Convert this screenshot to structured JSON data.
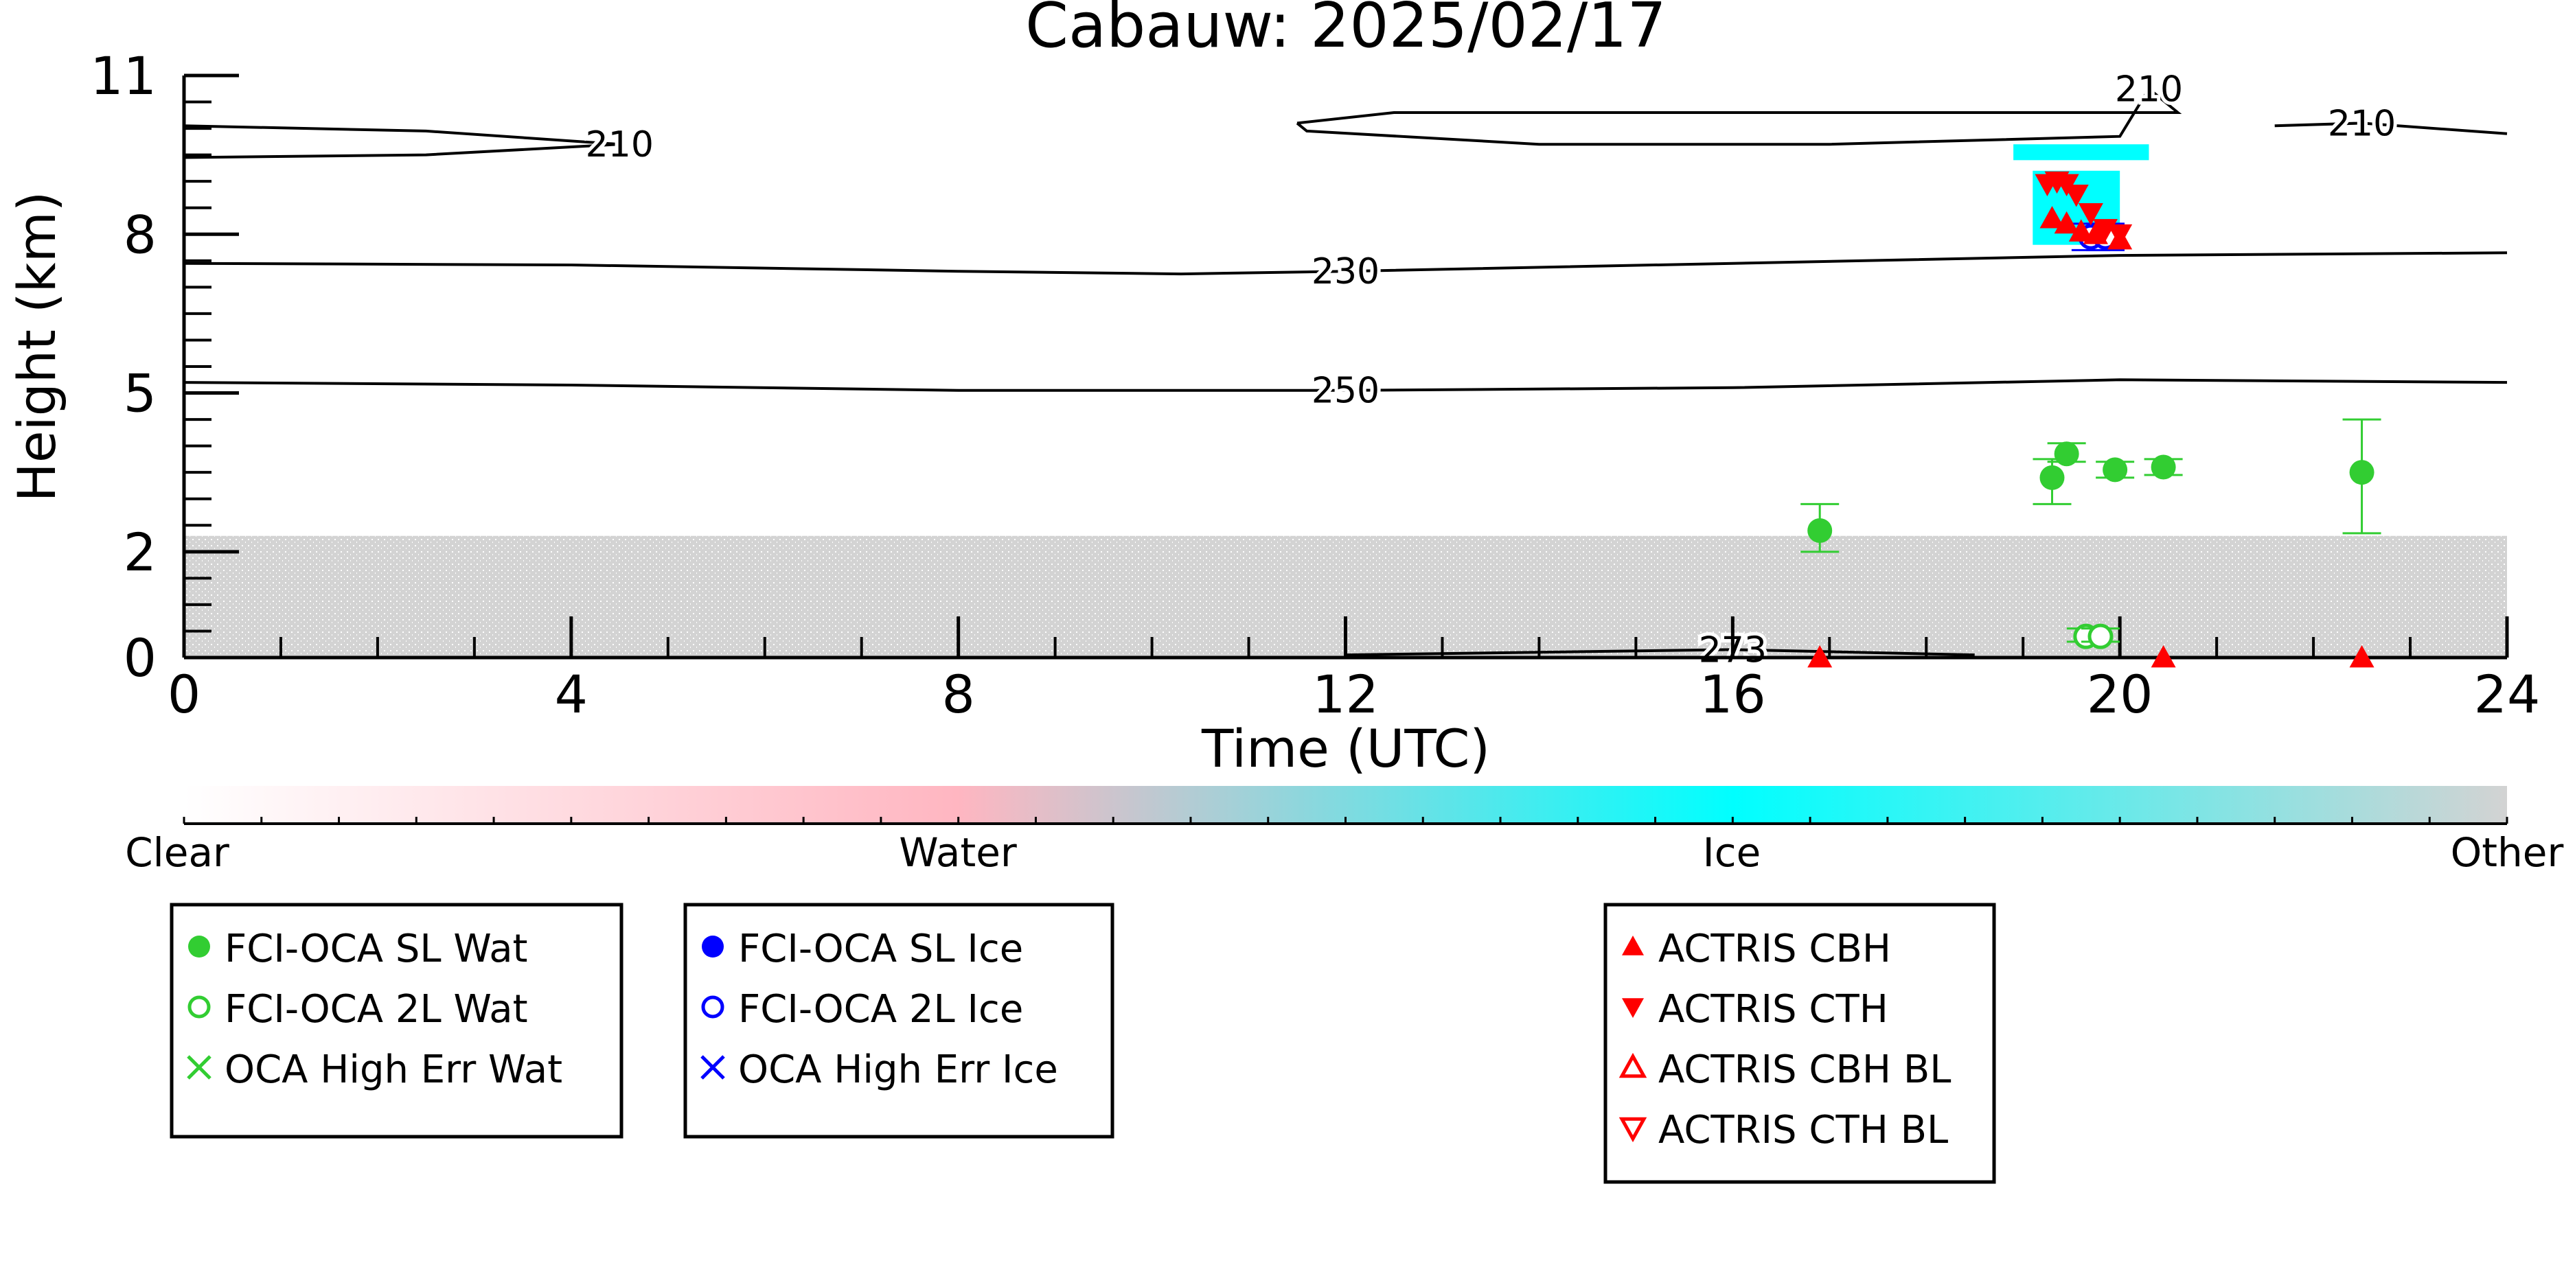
{
  "colors": {
    "clear": "#ffffff",
    "water": "#ffb6c1",
    "ice": "#00ffff",
    "other": "#d3d3d3",
    "sl_wat": "#32cd32",
    "ice_marker": "#0000ff",
    "actris": "#ff0000",
    "contour": "#000000"
  },
  "chart_data": {
    "type": "scatter",
    "title": "Cabauw: 2025/02/17",
    "xlabel": "Time (UTC)",
    "ylabel": "Height (km)",
    "xlim": [
      0,
      24
    ],
    "ylim": [
      0,
      11
    ],
    "x_ticks": [
      0,
      4,
      8,
      12,
      16,
      20,
      24
    ],
    "x_tick_labels": [
      "0",
      "4",
      "8",
      "12",
      "16",
      "20",
      "24"
    ],
    "y_ticks": [
      0,
      2,
      5,
      8,
      11
    ],
    "y_tick_labels": [
      "0",
      "2",
      "5",
      "8",
      "11"
    ],
    "colorbar": {
      "labels": [
        "Clear",
        "Water",
        "Ice",
        "Other"
      ]
    },
    "background_clouds": [
      {
        "class": "Other",
        "x_range": [
          0,
          24
        ],
        "y_range": [
          0,
          2.3
        ]
      },
      {
        "class": "Ice",
        "x_range": [
          19.1,
          20.0
        ],
        "y_range": [
          7.8,
          9.2
        ]
      },
      {
        "class": "Ice",
        "x_range": [
          18.9,
          20.3
        ],
        "y_range": [
          9.4,
          9.7
        ]
      }
    ],
    "contours": [
      {
        "label": "210",
        "points": [
          [
            0,
            10.05
          ],
          [
            2.5,
            9.95
          ],
          [
            4.5,
            9.7
          ],
          [
            2.5,
            9.5
          ],
          [
            0,
            9.45
          ]
        ]
      },
      {
        "label": "210",
        "points": [
          [
            11.5,
            10.1
          ],
          [
            12.5,
            10.3
          ],
          [
            16,
            10.3
          ],
          [
            19.8,
            10.3
          ],
          [
            20.6,
            10.3
          ],
          [
            20.3,
            10.75
          ],
          [
            20.0,
            9.85
          ],
          [
            17,
            9.7
          ],
          [
            14,
            9.7
          ],
          [
            11.6,
            9.95
          ],
          [
            11.5,
            10.1
          ]
        ]
      },
      {
        "label": "210",
        "points": [
          [
            21.6,
            10.05
          ],
          [
            22.5,
            10.1
          ],
          [
            24,
            9.9
          ]
        ]
      },
      {
        "label": "230",
        "points": [
          [
            0,
            7.45
          ],
          [
            4,
            7.42
          ],
          [
            8,
            7.3
          ],
          [
            10.3,
            7.25
          ],
          [
            12,
            7.3
          ],
          [
            16,
            7.45
          ],
          [
            20,
            7.6
          ],
          [
            24,
            7.65
          ]
        ]
      },
      {
        "label": "250",
        "points": [
          [
            0,
            5.2
          ],
          [
            4,
            5.15
          ],
          [
            8,
            5.05
          ],
          [
            10.3,
            5.05
          ],
          [
            12,
            5.05
          ],
          [
            16,
            5.1
          ],
          [
            20,
            5.25
          ],
          [
            24,
            5.2
          ]
        ]
      },
      {
        "label": "273",
        "points": [
          [
            12,
            0.05
          ],
          [
            14,
            0.1
          ],
          [
            16,
            0.15
          ],
          [
            18.5,
            0.05
          ]
        ]
      }
    ],
    "series": [
      {
        "name": "FCI-OCA SL Wat",
        "marker": "filled-circle",
        "points": [
          {
            "x": 16.9,
            "y": 2.4,
            "yerr": [
              2.0,
              2.9
            ]
          },
          {
            "x": 19.3,
            "y": 3.4,
            "yerr": [
              2.9,
              3.75
            ]
          },
          {
            "x": 19.45,
            "y": 3.85,
            "yerr": [
              3.7,
              4.05
            ]
          },
          {
            "x": 19.95,
            "y": 3.55,
            "yerr": [
              3.4,
              3.7
            ]
          },
          {
            "x": 20.45,
            "y": 3.6,
            "yerr": [
              3.45,
              3.75
            ]
          },
          {
            "x": 22.5,
            "y": 3.5,
            "yerr": [
              2.35,
              4.5
            ]
          }
        ]
      },
      {
        "name": "FCI-OCA 2L Wat",
        "marker": "open-circle",
        "points": [
          {
            "x": 19.65,
            "y": 0.4,
            "yerr": [
              0.3,
              0.55
            ]
          },
          {
            "x": 19.8,
            "y": 0.4,
            "yerr": [
              0.3,
              0.55
            ]
          }
        ]
      },
      {
        "name": "OCA High Err Wat",
        "marker": "x",
        "points": []
      },
      {
        "name": "FCI-OCA SL Ice",
        "marker": "filled-circle",
        "points": []
      },
      {
        "name": "FCI-OCA 2L Ice",
        "marker": "open-circle",
        "points": [
          {
            "x": 19.7,
            "y": 7.95,
            "yerr": [
              7.7,
              8.2
            ]
          },
          {
            "x": 19.85,
            "y": 7.95,
            "yerr": [
              7.7,
              8.2
            ]
          }
        ]
      },
      {
        "name": "OCA High Err Ice",
        "marker": "x",
        "points": []
      },
      {
        "name": "ACTRIS CBH",
        "marker": "triangle-up",
        "points": [
          {
            "x": 19.3,
            "y": 8.3
          },
          {
            "x": 19.45,
            "y": 8.2
          },
          {
            "x": 19.6,
            "y": 8.05
          },
          {
            "x": 19.75,
            "y": 8.0
          },
          {
            "x": 20.0,
            "y": 7.9
          },
          {
            "x": 16.9,
            "y": 0.0
          },
          {
            "x": 20.45,
            "y": 0.0
          },
          {
            "x": 22.5,
            "y": 0.0
          }
        ]
      },
      {
        "name": "ACTRIS CTH",
        "marker": "triangle-down",
        "points": [
          {
            "x": 19.25,
            "y": 8.95
          },
          {
            "x": 19.35,
            "y": 9.0
          },
          {
            "x": 19.45,
            "y": 8.95
          },
          {
            "x": 19.55,
            "y": 8.75
          },
          {
            "x": 19.7,
            "y": 8.4
          },
          {
            "x": 19.85,
            "y": 8.1
          },
          {
            "x": 20.0,
            "y": 8.0
          }
        ]
      },
      {
        "name": "ACTRIS CBH BL",
        "marker": "open-triangle-up",
        "points": []
      },
      {
        "name": "ACTRIS CTH BL",
        "marker": "open-triangle-down",
        "points": []
      }
    ]
  },
  "legends": [
    {
      "items": [
        {
          "label": "FCI-OCA SL Wat",
          "symbol": "filled-circle",
          "color": "#32cd32"
        },
        {
          "label": "FCI-OCA 2L Wat",
          "symbol": "open-circle",
          "color": "#32cd32"
        },
        {
          "label": "OCA High Err Wat",
          "symbol": "x",
          "color": "#32cd32"
        }
      ]
    },
    {
      "items": [
        {
          "label": "FCI-OCA SL Ice",
          "symbol": "filled-circle",
          "color": "#0000ff"
        },
        {
          "label": "FCI-OCA 2L Ice",
          "symbol": "open-circle",
          "color": "#0000ff"
        },
        {
          "label": "OCA High Err Ice",
          "symbol": "x",
          "color": "#0000ff"
        }
      ]
    },
    {
      "items": [
        {
          "label": "ACTRIS CBH",
          "symbol": "triangle-up",
          "color": "#ff0000"
        },
        {
          "label": "ACTRIS CTH",
          "symbol": "triangle-down",
          "color": "#ff0000"
        },
        {
          "label": "ACTRIS CBH BL",
          "symbol": "open-triangle-up",
          "color": "#ff0000"
        },
        {
          "label": "ACTRIS CTH BL",
          "symbol": "open-triangle-down",
          "color": "#ff0000"
        }
      ]
    }
  ]
}
